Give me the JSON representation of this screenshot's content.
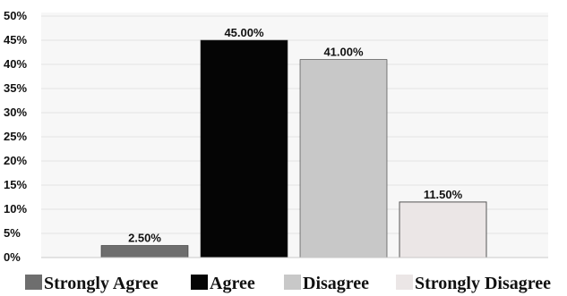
{
  "chart_data": {
    "type": "bar",
    "categories": [
      "Strongly Agree",
      "Agree",
      "Disagree",
      "Strongly Disagree"
    ],
    "values": [
      2.5,
      45.0,
      41.0,
      11.5
    ],
    "data_labels": [
      "2.50%",
      "45.00%",
      "41.00%",
      "11.50%"
    ],
    "colors": [
      "#6e6e6e",
      "#050505",
      "#c8c8c8",
      "#ebe6e6"
    ],
    "ylim": [
      0,
      50
    ],
    "y_ticks": [
      0,
      5,
      10,
      15,
      20,
      25,
      30,
      35,
      40,
      45,
      50
    ],
    "y_tick_labels": [
      "0%",
      "5%",
      "10%",
      "15%",
      "20%",
      "25%",
      "30%",
      "35%",
      "40%",
      "45%",
      "50%"
    ],
    "grid": true,
    "legend": {
      "position": "bottom",
      "entries": [
        "Strongly Agree",
        "Agree",
        "Disagree",
        "Strongly Disagree"
      ]
    },
    "title": "",
    "xlabel": "",
    "ylabel": ""
  }
}
